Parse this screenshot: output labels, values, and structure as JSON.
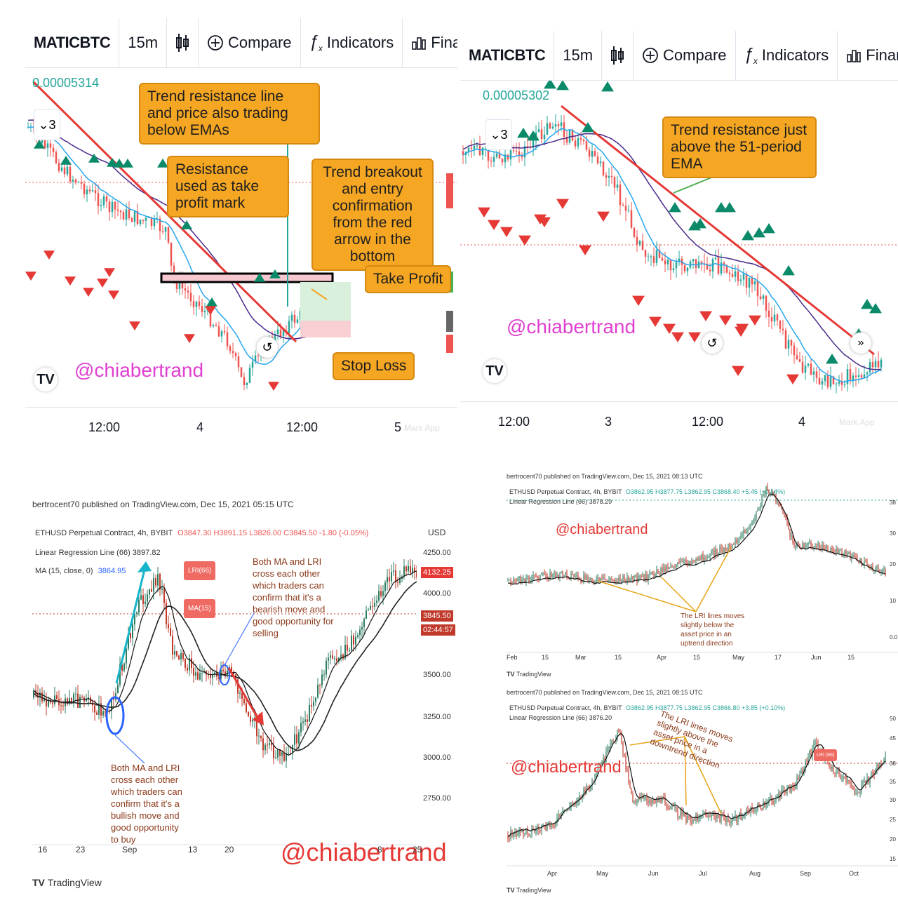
{
  "panel1": {
    "toolbar": {
      "symbol": "MATICBTC",
      "interval": "15m",
      "compare": "Compare",
      "indicators": "Indicators",
      "financials": "Financials"
    },
    "price_label": "0.00005314",
    "collapse_count": "3",
    "watermark": "@chiabertrand",
    "callouts": {
      "trend_resistance": "Trend resistance line and price also trading below EMAs",
      "resistance_tp": "Resistance used as take profit mark",
      "breakout": "Trend breakout and entry confirmation from the red arrow in the bottom",
      "take_profit": "Take Profit",
      "stop_loss": "Stop Loss"
    },
    "x_axis": [
      "12:00",
      "4",
      "12:00",
      "5"
    ],
    "mark_app": "Mark App"
  },
  "panel2": {
    "toolbar": {
      "symbol": "MATICBTC",
      "interval": "15m",
      "compare": "Compare",
      "indicators": "Indicators",
      "financials": "Financials"
    },
    "price_label": "0.00005302",
    "collapse_count": "3",
    "watermark": "@chiabertrand",
    "callouts": {
      "trend_resistance": "Trend resistance just above the 51-period EMA"
    },
    "x_axis": [
      "12:00",
      "3",
      "12:00",
      "4"
    ],
    "mark_app": "Mark App"
  },
  "panel3": {
    "published": "bertrocent70 published on TradingView.com, Dec 15, 2021 05:15 UTC",
    "legend": {
      "line1": "ETHUSD Perpetual Contract, 4h, BYBIT",
      "ohlc": "O3847.30 H3891.15 L3826.00 C3845.50 -1.80 (-0.05%)",
      "lri": "Linear Regression Line (66) 3897.82",
      "ma": "MA (15, close, 0)",
      "ma_value": "3864.95"
    },
    "currency": "USD",
    "y_axis": [
      "4250.00",
      "4132.25",
      "4000.00",
      "3845.50",
      "02:44:57",
      "3500.00",
      "3250.00",
      "3000.00",
      "2750.00"
    ],
    "x_axis": [
      "16",
      "23",
      "Sep",
      "13",
      "20",
      "8",
      "25"
    ],
    "tags": {
      "lri": "LRI(66)",
      "ma": "MA(15)"
    },
    "note_bearish": "Both MA and LRI cross each other which traders can confirm that it's a bearish move and good opportunity for selling",
    "note_bullish": "Both MA and LRI cross each other which traders can confirm that it's a bullish move and good opportunity to buy",
    "watermark": "@chiabertrand",
    "footer": "TradingView"
  },
  "panel4": {
    "top": {
      "published": "bertrocent70 published on TradingView.com, Dec 15, 2021 08:13 UTC",
      "line1": "ETHUSD Perpetual Contract, 4h, BYBIT",
      "ohlc": "O3862.95 H3877.75 L3862.95 C3868.40 +5.45 (+0.14%)",
      "lri": "Linear Regression Line (66) 3878.29",
      "watermark": "@chiabertrand",
      "note": "The LRI lines moves slightly below the asset price in an uptrend direction",
      "x_axis": [
        "Feb",
        "15",
        "Mar",
        "15",
        "Apr",
        "15",
        "May",
        "17",
        "Jun",
        "15"
      ],
      "y_axis": [
        "38",
        "30",
        "20",
        "10",
        "0.0"
      ],
      "footer": "TradingView"
    },
    "bottom": {
      "published": "bertrocent70 published on TradingView.com, Dec 15, 2021 08:15 UTC",
      "line1": "ETHUSD Perpetual Contract, 4h, BYBIT",
      "ohlc": "O3862.95 H3877.75 L3862.95 C3866.80 +3.85 (+0.10%)",
      "lri": "Linear Regression Line (66) 3876.20",
      "watermark": "@chiabertrand",
      "note": "The LRI lines moves slightly above the asset price in a downtrend direction",
      "tag": "LRI (66)",
      "x_axis": [
        "Apr",
        "May",
        "Jun",
        "Jul",
        "Aug",
        "Sep",
        "Oct"
      ],
      "y_axis": [
        "50",
        "45",
        "38",
        "35",
        "30",
        "25",
        "20",
        "15"
      ],
      "footer": "TradingView"
    }
  },
  "colors": {
    "up": "#26a69a",
    "down": "#ef5350",
    "callout": "#f5a623",
    "watermark": "#e040d0",
    "trendline": "#e53935"
  }
}
